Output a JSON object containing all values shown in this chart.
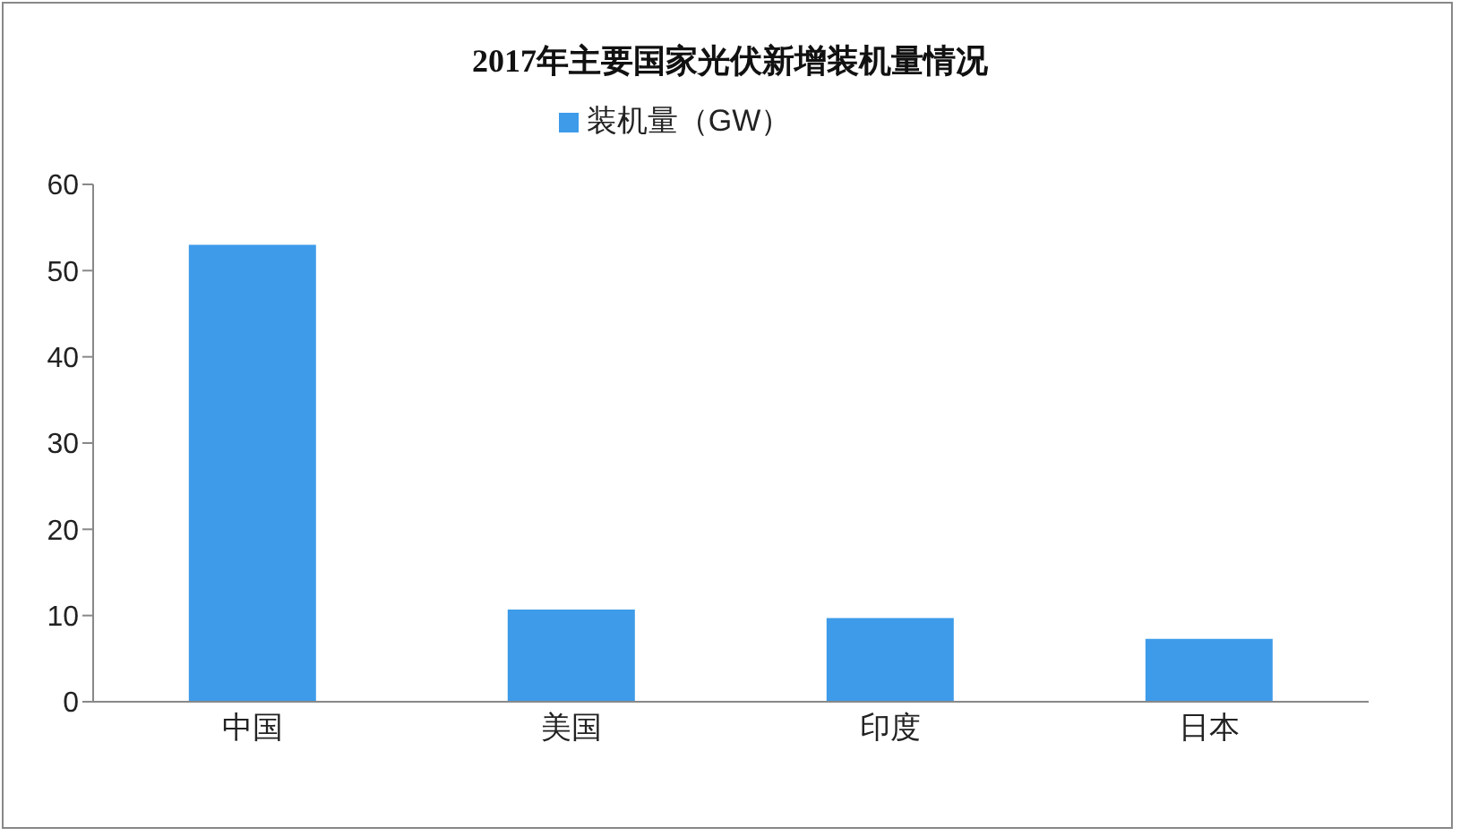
{
  "chart_data": {
    "type": "bar",
    "title": "2017年主要国家光伏新增装机量情况",
    "categories": [
      "中国",
      "美国",
      "印度",
      "日本"
    ],
    "series": [
      {
        "name": "装机量（GW）",
        "color": "#3d9be9",
        "values": [
          53,
          10.7,
          9.7,
          7.3
        ]
      }
    ],
    "ylim": [
      0,
      60
    ],
    "yticks": [
      0,
      10,
      20,
      30,
      40,
      50,
      60
    ],
    "grid": false,
    "legend": "top"
  }
}
